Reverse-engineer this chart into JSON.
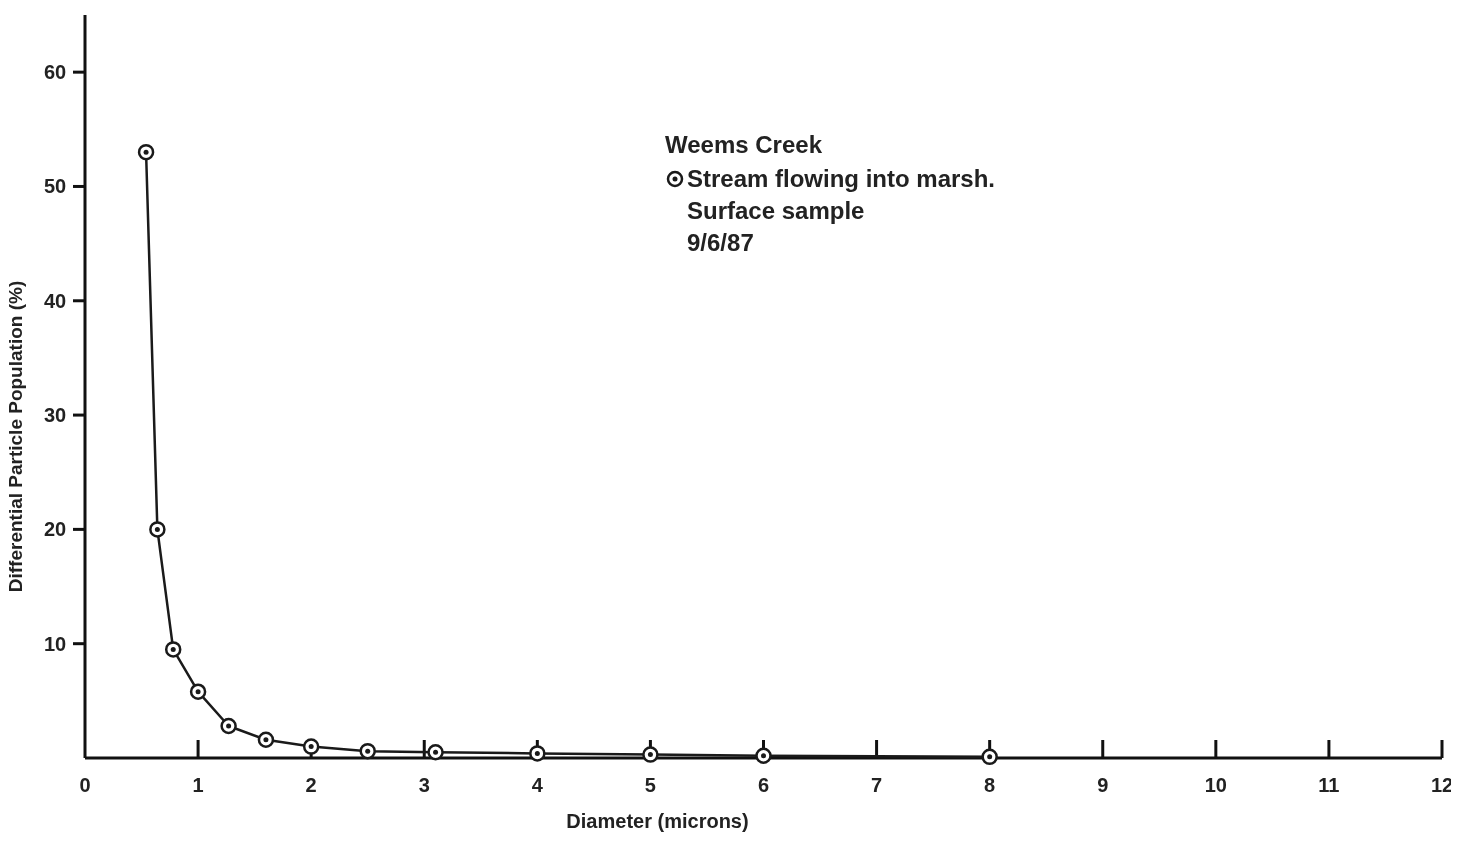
{
  "chart_data": {
    "type": "line",
    "legend_title": "Weems Creek",
    "xlabel": "Diameter (microns)",
    "ylabel": "Differential Particle Population (%)",
    "x": [
      0.54,
      0.64,
      0.78,
      1.0,
      1.27,
      1.6,
      2.0,
      2.5,
      3.1,
      4,
      5,
      6,
      8
    ],
    "series": [
      {
        "name": "Stream flowing into marsh.",
        "color": "#1a1a1a",
        "values": [
          53,
          20,
          9.5,
          5.8,
          2.8,
          1.6,
          1.0,
          0.6,
          0.5,
          0.4,
          0.3,
          0.2,
          0.1
        ]
      }
    ],
    "annotations": [
      "Surface sample",
      "9/6/87"
    ],
    "xlim": [
      0,
      12
    ],
    "xticks": [
      0,
      1,
      2,
      3,
      4,
      5,
      6,
      7,
      8,
      9,
      10,
      11,
      12
    ],
    "ylim": [
      0,
      65
    ],
    "yticks": [
      10,
      20,
      30,
      40,
      50,
      60
    ],
    "grid": false,
    "legend": "top right",
    "marker": "circle",
    "line_style": "solid"
  }
}
